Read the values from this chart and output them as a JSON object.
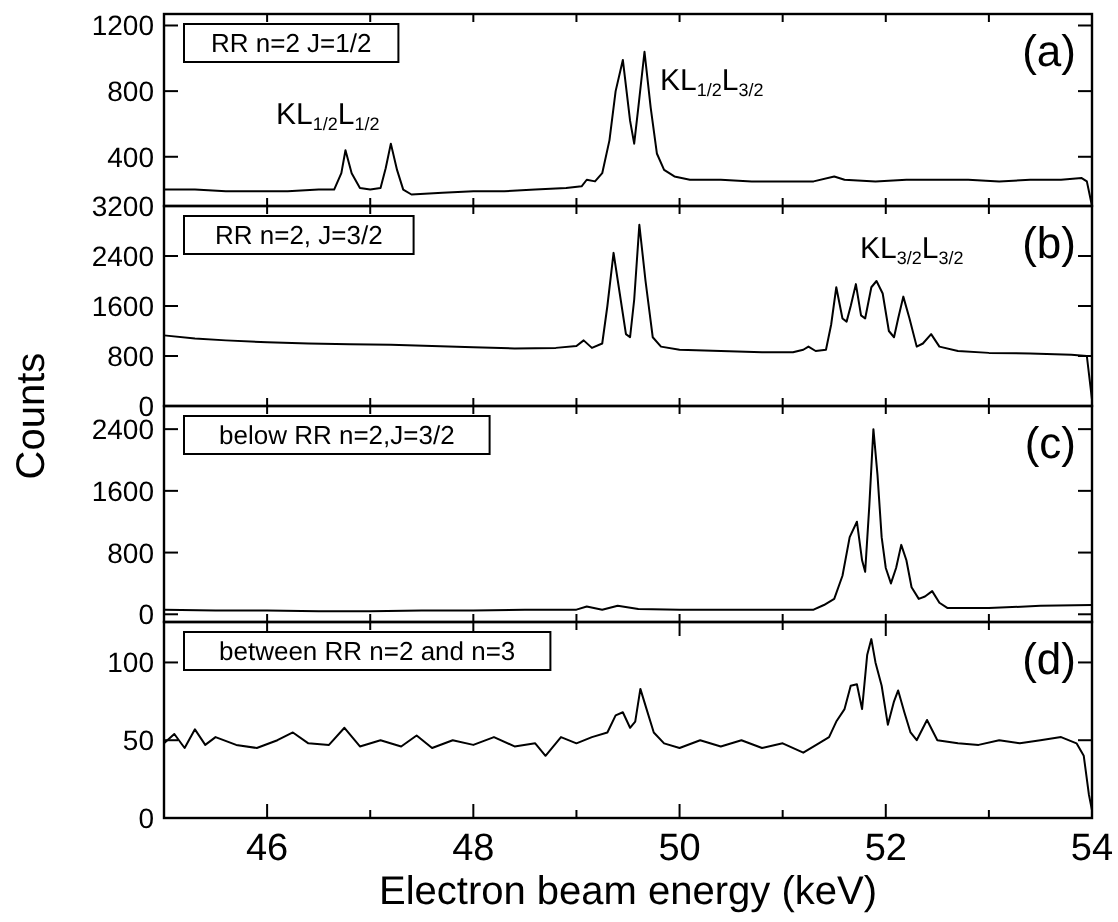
{
  "chart_data": [
    {
      "type": "line",
      "ylabel": "Counts",
      "xlim": [
        45,
        54
      ],
      "ylim": [
        100,
        1270
      ],
      "yticks": [
        400,
        800,
        1200
      ],
      "xticks": [
        {
          "value": 45,
          "label": null
        },
        {
          "value": 46,
          "label": null
        },
        {
          "value": 47,
          "label": null
        },
        {
          "value": 48,
          "label": null
        },
        {
          "value": 49,
          "label": null
        },
        {
          "value": 50,
          "label": null
        },
        {
          "value": 51,
          "label": null
        },
        {
          "value": 52,
          "label": null
        },
        {
          "value": 53,
          "label": null
        },
        {
          "value": 54,
          "label": null
        }
      ],
      "tick_labels": "y",
      "annotations": [
        "RR n=2 J=1/2",
        "(a)",
        "KL$_{1/2}$L$_{1/2}$",
        "KL$_{1/2}$L$_{3/2}$"
      ],
      "series": [
        {
          "color": "#000000",
          "x": [
            45.0,
            45.3,
            45.6,
            45.9,
            46.2,
            46.5,
            46.65,
            46.72,
            46.76,
            46.82,
            46.9,
            47.0,
            47.1,
            47.15,
            47.2,
            47.26,
            47.32,
            47.4,
            47.7,
            48.0,
            48.3,
            48.6,
            48.9,
            49.05,
            49.1,
            49.18,
            49.25,
            49.32,
            49.38,
            49.45,
            49.52,
            49.56,
            49.6,
            49.66,
            49.72,
            49.78,
            49.85,
            49.95,
            50.1,
            50.4,
            50.7,
            51.0,
            51.3,
            51.5,
            51.6,
            51.9,
            52.2,
            52.5,
            52.8,
            53.1,
            53.4,
            53.7,
            53.9,
            53.95,
            54.0
          ],
          "values": [
            200,
            200,
            190,
            190,
            190,
            200,
            200,
            300,
            440,
            300,
            210,
            200,
            210,
            330,
            480,
            320,
            200,
            170,
            180,
            190,
            190,
            200,
            210,
            220,
            260,
            250,
            300,
            500,
            800,
            990,
            620,
            480,
            700,
            1040,
            700,
            420,
            320,
            280,
            260,
            260,
            250,
            250,
            250,
            280,
            260,
            250,
            260,
            260,
            260,
            250,
            260,
            260,
            270,
            250,
            100
          ]
        }
      ]
    },
    {
      "type": "line",
      "xlim": [
        45,
        54
      ],
      "ylim": [
        0,
        3200
      ],
      "yticks": [
        0,
        800,
        1600,
        2400,
        3200
      ],
      "xticks": [
        {
          "value": 45,
          "label": null
        },
        {
          "value": 46,
          "label": null
        },
        {
          "value": 47,
          "label": null
        },
        {
          "value": 48,
          "label": null
        },
        {
          "value": 49,
          "label": null
        },
        {
          "value": 50,
          "label": null
        },
        {
          "value": 51,
          "label": null
        },
        {
          "value": 52,
          "label": null
        },
        {
          "value": 53,
          "label": null
        },
        {
          "value": 54,
          "label": null
        }
      ],
      "tick_labels": "y",
      "annotations": [
        "RR n=2, J=3/2",
        "(b)",
        "KL$_{3/2}$L$_{3/2}$"
      ],
      "series": [
        {
          "color": "#000000",
          "x": [
            45.0,
            45.3,
            45.6,
            46.0,
            46.4,
            46.8,
            47.2,
            47.6,
            48.0,
            48.4,
            48.8,
            49.0,
            49.07,
            49.15,
            49.25,
            49.3,
            49.36,
            49.42,
            49.48,
            49.52,
            49.56,
            49.61,
            49.67,
            49.74,
            49.82,
            50.0,
            50.4,
            50.8,
            51.1,
            51.2,
            51.25,
            51.32,
            51.42,
            51.47,
            51.52,
            51.58,
            51.62,
            51.66,
            51.71,
            51.76,
            51.8,
            51.86,
            51.91,
            51.97,
            52.03,
            52.08,
            52.12,
            52.17,
            52.23,
            52.3,
            52.36,
            52.44,
            52.52,
            52.7,
            53.0,
            53.4,
            53.8,
            53.95,
            54.0
          ],
          "values": [
            1130,
            1080,
            1050,
            1020,
            1000,
            990,
            980,
            960,
            940,
            920,
            930,
            960,
            1050,
            930,
            1000,
            1600,
            2450,
            1800,
            1150,
            1100,
            1700,
            2900,
            2000,
            1100,
            950,
            900,
            880,
            860,
            860,
            900,
            950,
            880,
            900,
            1300,
            1900,
            1400,
            1350,
            1600,
            1950,
            1450,
            1400,
            1900,
            2000,
            1800,
            1200,
            1100,
            1400,
            1750,
            1400,
            950,
            1000,
            1150,
            950,
            880,
            850,
            840,
            820,
            800,
            100
          ]
        }
      ]
    },
    {
      "type": "line",
      "xlim": [
        45,
        54
      ],
      "ylim": [
        -100,
        2700
      ],
      "yticks": [
        0,
        800,
        1600,
        2400
      ],
      "xticks": [
        {
          "value": 45,
          "label": null
        },
        {
          "value": 46,
          "label": null
        },
        {
          "value": 47,
          "label": null
        },
        {
          "value": 48,
          "label": null
        },
        {
          "value": 49,
          "label": null
        },
        {
          "value": 50,
          "label": null
        },
        {
          "value": 51,
          "label": null
        },
        {
          "value": 52,
          "label": null
        },
        {
          "value": 53,
          "label": null
        },
        {
          "value": 54,
          "label": null
        }
      ],
      "tick_labels": "y",
      "annotations": [
        "below RR n=2,J=3/2",
        "(c)"
      ],
      "series": [
        {
          "color": "#000000",
          "x": [
            45.0,
            45.5,
            46.0,
            46.5,
            47.0,
            47.5,
            48.0,
            48.5,
            49.0,
            49.1,
            49.25,
            49.4,
            49.6,
            50.0,
            50.5,
            51.0,
            51.3,
            51.4,
            51.5,
            51.58,
            51.65,
            51.72,
            51.77,
            51.8,
            51.84,
            51.88,
            51.92,
            51.96,
            52.0,
            52.05,
            52.1,
            52.15,
            52.2,
            52.25,
            52.32,
            52.38,
            52.45,
            52.52,
            52.6,
            53.0,
            53.5,
            54.0
          ],
          "values": [
            60,
            50,
            50,
            40,
            40,
            50,
            50,
            60,
            60,
            100,
            60,
            110,
            70,
            60,
            60,
            60,
            60,
            120,
            200,
            500,
            1000,
            1200,
            700,
            550,
            1400,
            2400,
            1800,
            1000,
            600,
            400,
            600,
            900,
            700,
            350,
            200,
            230,
            300,
            150,
            80,
            80,
            110,
            120
          ]
        }
      ]
    },
    {
      "type": "line",
      "xlabel": "Electron beam energy (keV)",
      "xlim": [
        45,
        54
      ],
      "ylim": [
        0,
        126
      ],
      "yticks": [
        0,
        50,
        100
      ],
      "xticks": [
        {
          "value": 45,
          "label": null
        },
        46,
        {
          "value": 47,
          "label": null
        },
        48,
        {
          "value": 49,
          "label": null
        },
        50,
        {
          "value": 51,
          "label": null
        },
        52,
        {
          "value": 53,
          "label": null
        },
        54
      ],
      "annotations": [
        "between RR n=2 and n=3",
        "(d)"
      ],
      "series": [
        {
          "color": "#000000",
          "x": [
            45.0,
            45.1,
            45.2,
            45.3,
            45.4,
            45.5,
            45.7,
            45.9,
            46.1,
            46.25,
            46.4,
            46.6,
            46.75,
            46.9,
            47.1,
            47.3,
            47.45,
            47.6,
            47.8,
            48.0,
            48.2,
            48.4,
            48.6,
            48.7,
            48.85,
            49.0,
            49.15,
            49.3,
            49.38,
            49.45,
            49.52,
            49.57,
            49.62,
            49.68,
            49.75,
            49.85,
            50.0,
            50.2,
            50.4,
            50.6,
            50.8,
            51.0,
            51.2,
            51.35,
            51.45,
            51.52,
            51.6,
            51.66,
            51.72,
            51.77,
            51.82,
            51.86,
            51.9,
            51.96,
            52.02,
            52.08,
            52.12,
            52.18,
            52.24,
            52.3,
            52.4,
            52.5,
            52.7,
            52.9,
            53.1,
            53.3,
            53.5,
            53.7,
            53.85,
            53.92,
            53.97,
            54.0
          ],
          "values": [
            48,
            54,
            45,
            57,
            47,
            52,
            47,
            45,
            50,
            55,
            48,
            47,
            58,
            46,
            50,
            46,
            53,
            45,
            50,
            47,
            52,
            46,
            48,
            40,
            52,
            48,
            52,
            55,
            66,
            68,
            58,
            62,
            83,
            70,
            55,
            48,
            45,
            50,
            46,
            50,
            45,
            48,
            42,
            48,
            52,
            62,
            70,
            85,
            86,
            70,
            105,
            115,
            100,
            85,
            60,
            75,
            82,
            68,
            55,
            50,
            63,
            50,
            48,
            47,
            50,
            48,
            50,
            52,
            48,
            40,
            15,
            5
          ]
        }
      ]
    }
  ]
}
